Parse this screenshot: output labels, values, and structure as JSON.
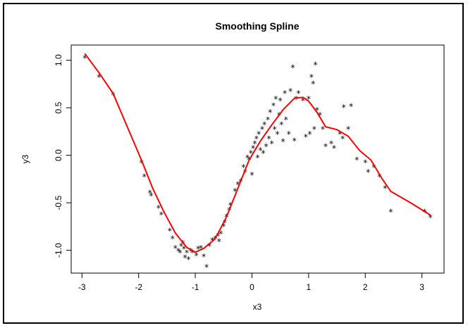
{
  "chart_data": {
    "type": "scatter",
    "title": "Smoothing Spline",
    "x_label": "x3",
    "y_label": "y3",
    "marker": "*",
    "color": "#000000",
    "x": [
      -2.95,
      -2.7,
      -2.45,
      -1.95,
      -1.9,
      -1.8,
      -1.78,
      -1.65,
      -1.6,
      -1.45,
      -1.4,
      -1.35,
      -1.3,
      -1.27,
      -1.25,
      -1.22,
      -1.2,
      -1.18,
      -1.15,
      -1.12,
      -1.08,
      -1.05,
      -0.98,
      -0.95,
      -0.9,
      -0.85,
      -0.8,
      -0.75,
      -0.7,
      -0.65,
      -0.6,
      -0.58,
      -0.55,
      -0.5,
      -0.48,
      -0.45,
      -0.4,
      -0.38,
      -0.3,
      -0.25,
      -0.2,
      -0.15,
      -0.12,
      -0.08,
      -0.05,
      -0.02,
      0.0,
      0.02,
      0.05,
      0.08,
      0.1,
      0.12,
      0.15,
      0.18,
      0.2,
      0.22,
      0.25,
      0.28,
      0.3,
      0.32,
      0.35,
      0.38,
      0.4,
      0.42,
      0.45,
      0.48,
      0.5,
      0.52,
      0.55,
      0.58,
      0.6,
      0.65,
      0.68,
      0.72,
      0.75,
      0.78,
      0.82,
      0.9,
      0.95,
      1.0,
      1.02,
      1.05,
      1.08,
      1.1,
      1.12,
      1.15,
      1.2,
      1.25,
      1.3,
      1.4,
      1.45,
      1.55,
      1.6,
      1.62,
      1.7,
      1.75,
      1.85,
      2.0,
      2.05,
      2.15,
      2.25,
      2.35,
      2.45,
      3.05,
      3.15
    ],
    "values": [
      1.05,
      0.85,
      0.66,
      -0.05,
      -0.2,
      -0.37,
      -0.4,
      -0.53,
      -0.6,
      -0.77,
      -0.85,
      -0.95,
      -0.98,
      -1.0,
      -0.93,
      -0.9,
      -0.96,
      -1.05,
      -1.0,
      -1.07,
      -0.98,
      -1.0,
      -1.03,
      -0.96,
      -0.95,
      -1.04,
      -1.15,
      -0.93,
      -0.87,
      -0.85,
      -0.82,
      -0.88,
      -0.8,
      -0.72,
      -0.68,
      -0.62,
      -0.55,
      -0.5,
      -0.35,
      -0.28,
      -0.25,
      -0.1,
      -0.15,
      0.0,
      -0.02,
      0.05,
      -0.18,
      0.1,
      0.15,
      0.2,
      0.0,
      0.25,
      0.08,
      0.3,
      0.05,
      0.35,
      0.12,
      0.4,
      0.2,
      0.48,
      0.15,
      0.55,
      0.3,
      0.62,
      0.25,
      0.45,
      0.6,
      0.35,
      0.17,
      0.68,
      0.4,
      0.25,
      0.7,
      0.95,
      0.18,
      0.62,
      0.68,
      0.6,
      0.22,
      0.62,
      0.25,
      0.85,
      0.78,
      0.3,
      0.98,
      0.5,
      0.45,
      0.3,
      0.12,
      0.15,
      0.1,
      0.25,
      0.2,
      0.53,
      0.3,
      0.54,
      -0.02,
      -0.05,
      -0.15,
      -0.1,
      -0.2,
      -0.32,
      -0.57,
      -0.57,
      -0.63
    ],
    "spline": {
      "color": "#ff0000",
      "x": [
        -2.95,
        -2.7,
        -2.45,
        -2.2,
        -1.95,
        -1.75,
        -1.55,
        -1.35,
        -1.15,
        -1.0,
        -0.85,
        -0.65,
        -0.45,
        -0.25,
        -0.05,
        0.15,
        0.35,
        0.55,
        0.75,
        0.9,
        1.0,
        1.15,
        1.3,
        1.5,
        1.7,
        1.9,
        2.1,
        2.3,
        2.45,
        2.8,
        3.15
      ],
      "values": [
        1.07,
        0.87,
        0.65,
        0.3,
        -0.05,
        -0.35,
        -0.6,
        -0.82,
        -0.97,
        -1.02,
        -0.98,
        -0.88,
        -0.65,
        -0.35,
        -0.05,
        0.15,
        0.32,
        0.48,
        0.6,
        0.61,
        0.57,
        0.45,
        0.3,
        0.27,
        0.2,
        0.05,
        -0.05,
        -0.25,
        -0.38,
        -0.5,
        -0.63
      ]
    },
    "xlim": [
      -3.19,
      3.39
    ],
    "ylim": [
      -1.24,
      1.16
    ],
    "xticks": [
      -3,
      -2,
      -1,
      0,
      1,
      2,
      3
    ],
    "yticks": [
      {
        "value": -1,
        "label": "-1.0"
      },
      {
        "value": -0.5,
        "label": "-0.5"
      },
      {
        "value": 0,
        "label": "0.0"
      },
      {
        "value": 0.5,
        "label": "0.5"
      },
      {
        "value": 1,
        "label": "1.0"
      }
    ]
  }
}
